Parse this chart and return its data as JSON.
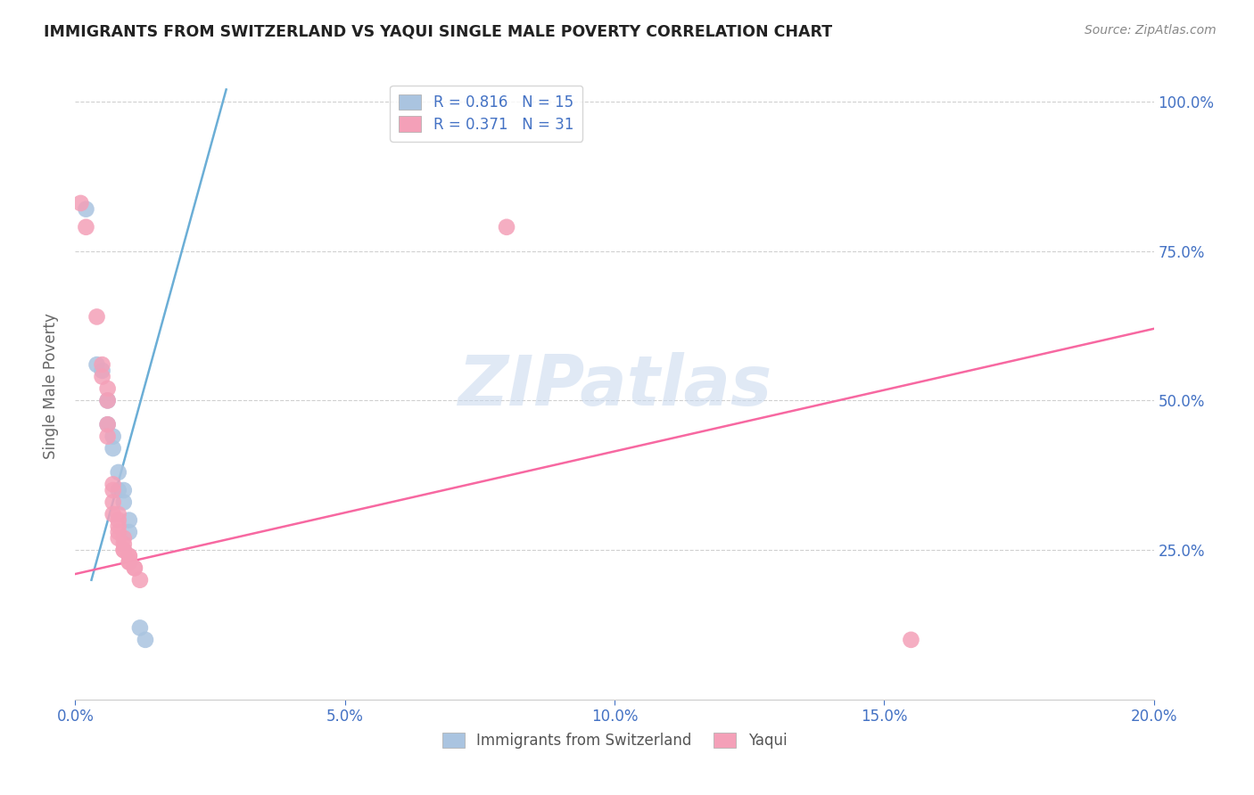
{
  "title": "IMMIGRANTS FROM SWITZERLAND VS YAQUI SINGLE MALE POVERTY CORRELATION CHART",
  "source": "Source: ZipAtlas.com",
  "ylabel": "Single Male Poverty",
  "x_tick_labels": [
    "0.0%",
    "5.0%",
    "10.0%",
    "15.0%",
    "20.0%"
  ],
  "x_tick_values": [
    0.0,
    0.05,
    0.1,
    0.15,
    0.2
  ],
  "y_tick_labels": [
    "100.0%",
    "75.0%",
    "50.0%",
    "25.0%"
  ],
  "y_tick_values": [
    1.0,
    0.75,
    0.5,
    0.25
  ],
  "xlim": [
    0.0,
    0.2
  ],
  "ylim": [
    0.0,
    1.05
  ],
  "legend_entries": [
    {
      "label": "R = 0.816   N = 15"
    },
    {
      "label": "R = 0.371   N = 31"
    }
  ],
  "legend_labels": [
    "Immigrants from Switzerland",
    "Yaqui"
  ],
  "blue_scatter": [
    [
      0.002,
      0.82
    ],
    [
      0.004,
      0.56
    ],
    [
      0.005,
      0.55
    ],
    [
      0.006,
      0.5
    ],
    [
      0.006,
      0.46
    ],
    [
      0.007,
      0.44
    ],
    [
      0.007,
      0.42
    ],
    [
      0.008,
      0.38
    ],
    [
      0.008,
      0.35
    ],
    [
      0.009,
      0.35
    ],
    [
      0.009,
      0.33
    ],
    [
      0.01,
      0.3
    ],
    [
      0.01,
      0.28
    ],
    [
      0.012,
      0.12
    ],
    [
      0.013,
      0.1
    ]
  ],
  "pink_scatter": [
    [
      0.001,
      0.83
    ],
    [
      0.002,
      0.79
    ],
    [
      0.004,
      0.64
    ],
    [
      0.005,
      0.56
    ],
    [
      0.005,
      0.54
    ],
    [
      0.006,
      0.52
    ],
    [
      0.006,
      0.5
    ],
    [
      0.006,
      0.46
    ],
    [
      0.006,
      0.44
    ],
    [
      0.007,
      0.36
    ],
    [
      0.007,
      0.35
    ],
    [
      0.007,
      0.33
    ],
    [
      0.007,
      0.31
    ],
    [
      0.008,
      0.31
    ],
    [
      0.008,
      0.3
    ],
    [
      0.008,
      0.29
    ],
    [
      0.008,
      0.28
    ],
    [
      0.008,
      0.27
    ],
    [
      0.009,
      0.27
    ],
    [
      0.009,
      0.26
    ],
    [
      0.009,
      0.25
    ],
    [
      0.009,
      0.25
    ],
    [
      0.01,
      0.24
    ],
    [
      0.01,
      0.24
    ],
    [
      0.01,
      0.23
    ],
    [
      0.01,
      0.23
    ],
    [
      0.011,
      0.22
    ],
    [
      0.011,
      0.22
    ],
    [
      0.012,
      0.2
    ],
    [
      0.08,
      0.79
    ],
    [
      0.155,
      0.1
    ]
  ],
  "blue_line_x": [
    0.003,
    0.028
  ],
  "blue_line_y": [
    0.2,
    1.02
  ],
  "pink_line_x": [
    0.0,
    0.2
  ],
  "pink_line_y": [
    0.21,
    0.62
  ],
  "blue_color": "#6baed6",
  "pink_color": "#f768a1",
  "blue_scatter_color": "#aac4e0",
  "pink_scatter_color": "#f4a0b8",
  "watermark": "ZIPatlas",
  "background_color": "#ffffff",
  "grid_color": "#d0d0d0"
}
